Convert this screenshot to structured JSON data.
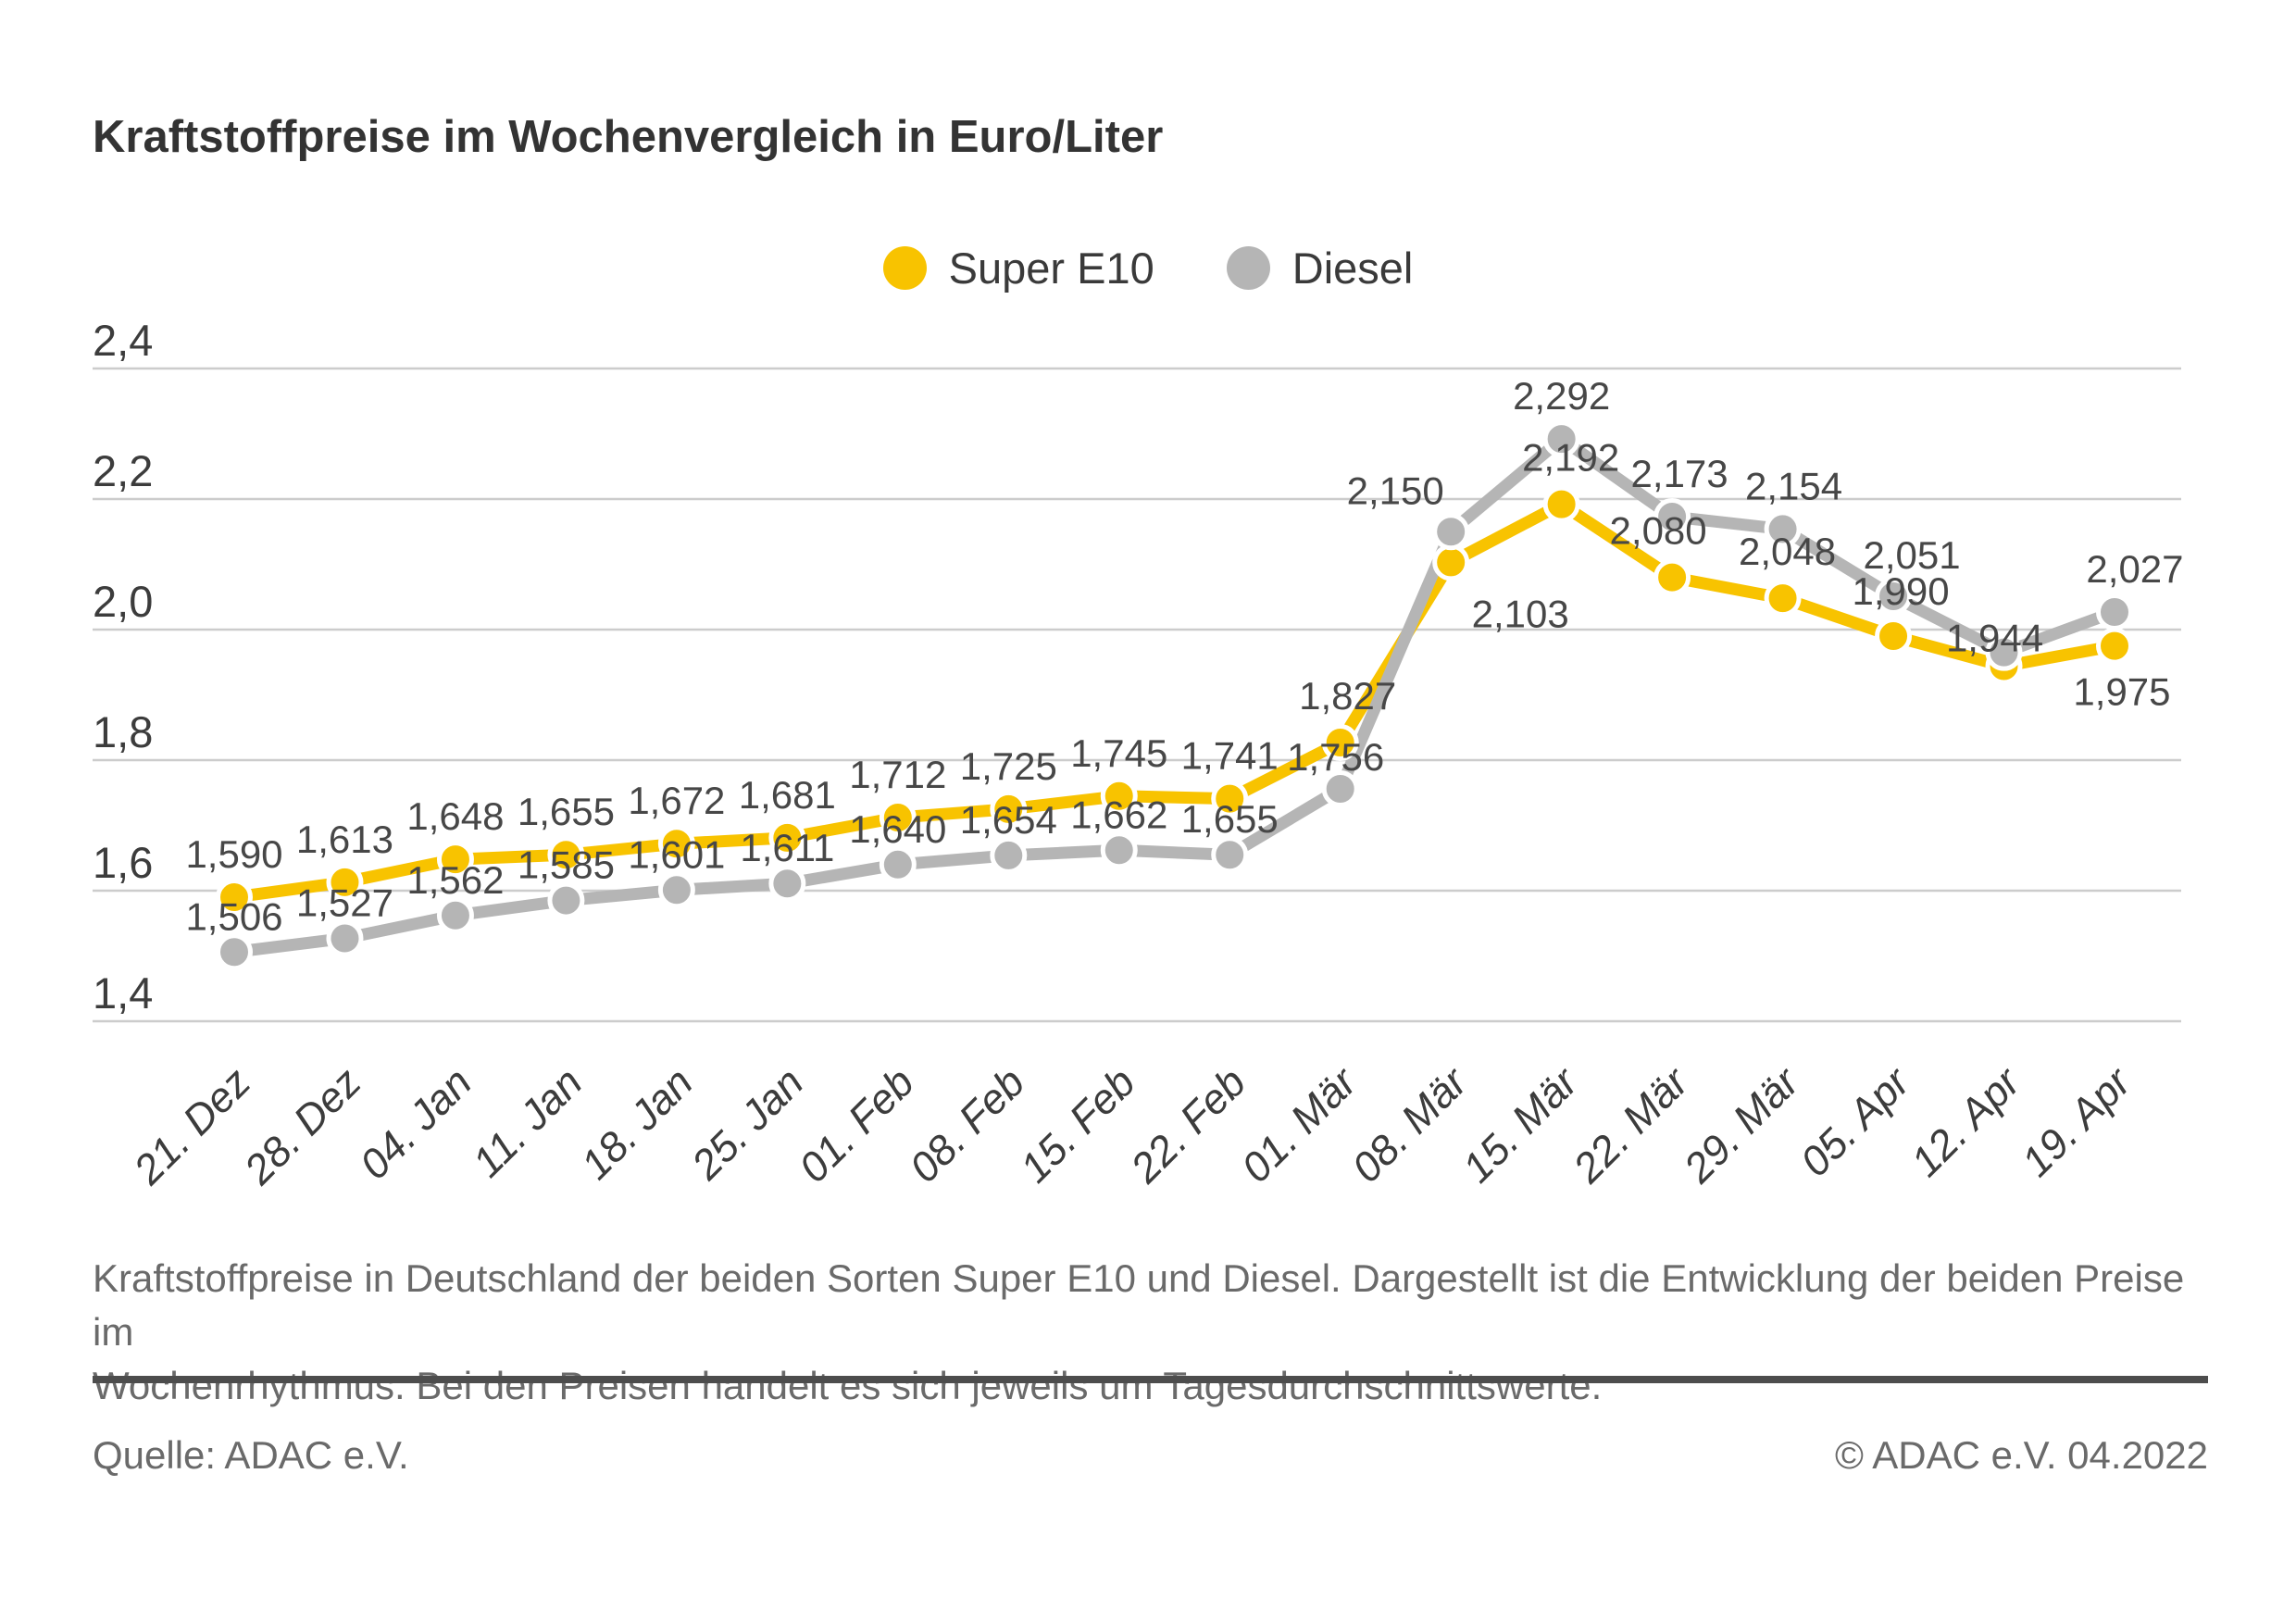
{
  "page": {
    "title": "Kraftstoffpreise im Wochenvergleich in Euro/Liter",
    "description_lines": [
      "Kraftstoffpreise in Deutschland der beiden Sorten Super E10 und Diesel. Dargestellt ist die Entwicklung der beiden Preise im",
      "Wochenrhythmus. Bei den Preisen handelt es sich jeweils um Tagesdurchschnittswerte."
    ],
    "source_left": "Quelle: ADAC e.V.",
    "source_right": "© ADAC e.V. 04.2022"
  },
  "colors": {
    "super_e10": "#F8C300",
    "diesel": "#B5B5B5",
    "grid": "#CCCCCC",
    "axis_text": "#3C3C3C",
    "label_text": "#474747"
  },
  "chart_data": {
    "type": "line",
    "title": "Kraftstoffpreise im Wochenvergleich in Euro/Liter",
    "unit": "Euro/Liter",
    "categories": [
      "21. Dez",
      "28. Dez",
      "04. Jan",
      "11. Jan",
      "18. Jan",
      "25. Jan",
      "01. Feb",
      "08. Feb",
      "15. Feb",
      "22. Feb",
      "01. Mär",
      "08. Mär",
      "15. Mär",
      "22. Mär",
      "29. Mär",
      "05. Apr",
      "12. Apr",
      "19. Apr"
    ],
    "series": [
      {
        "name": "Super E10",
        "color": "#F8C300",
        "values": [
          1.59,
          1.613,
          1.648,
          1.655,
          1.672,
          1.681,
          1.712,
          1.725,
          1.745,
          1.741,
          1.827,
          2.103,
          2.192,
          2.08,
          2.048,
          1.99,
          1.944,
          1.975
        ],
        "point_labels": [
          "1,590",
          "1,613",
          "1,648",
          "1,655",
          "1,672",
          "1,681",
          "1,712",
          "1,725",
          "1,745",
          "1,741",
          "1,827",
          "2,103",
          "2,192",
          "2,080",
          "2,048",
          "1,990",
          "1,944",
          "1,975"
        ]
      },
      {
        "name": "Diesel",
        "color": "#B5B5B5",
        "values": [
          1.506,
          1.527,
          1.562,
          1.585,
          1.601,
          1.611,
          1.64,
          1.654,
          1.662,
          1.655,
          1.756,
          2.15,
          2.292,
          2.173,
          2.154,
          2.051,
          1.965,
          2.027
        ],
        "point_labels": [
          "1,506",
          "1,527",
          "1,562",
          "1,585",
          "1,601",
          "1,611",
          "1,640",
          "1,654",
          "1,662",
          "1,655",
          "1,756",
          "2,150",
          "2,292",
          "2,173",
          "2,154",
          "2,051",
          null,
          "2,027"
        ],
        "estimated_indices": [
          16
        ]
      }
    ],
    "ylim": [
      1.4,
      2.4
    ],
    "yticks": [
      {
        "value": 2.4,
        "label": "2,4"
      },
      {
        "value": 2.2,
        "label": "2,2"
      },
      {
        "value": 2.0,
        "label": "2,0"
      },
      {
        "value": 1.8,
        "label": "1,8"
      },
      {
        "value": 1.6,
        "label": "1,6"
      },
      {
        "value": 1.4,
        "label": "1,4"
      }
    ],
    "grid": true,
    "legend_position": "top-center"
  }
}
